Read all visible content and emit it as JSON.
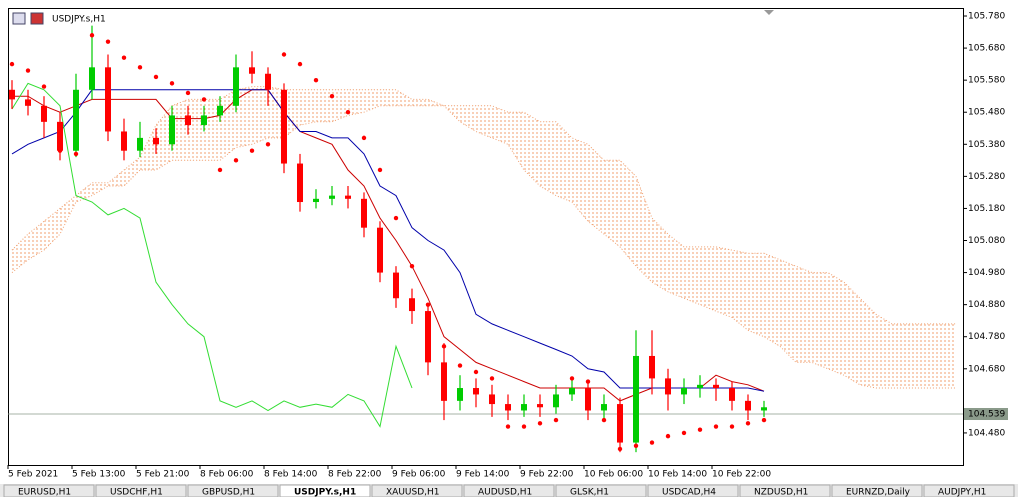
{
  "chart_data": {
    "type": "candlestick",
    "title": "USDJPY.s,H1",
    "categories": [
      "5 Feb 2021",
      null,
      null,
      null,
      "5 Feb 13:00",
      null,
      null,
      null,
      "5 Feb 21:00",
      null,
      null,
      null,
      "8 Feb 06:00",
      null,
      null,
      null,
      "8 Feb 14:00",
      null,
      null,
      null,
      "8 Feb 22:00",
      null,
      null,
      null,
      "9 Feb 06:00",
      null,
      null,
      null,
      "9 Feb 14:00",
      null,
      null,
      null,
      "9 Feb 22:00",
      null,
      null,
      null,
      "10 Feb 06:00",
      null,
      null,
      null,
      "10 Feb 14:00",
      null,
      null,
      null,
      "10 Feb 22:00",
      null,
      null,
      null,
      null,
      null,
      null,
      null,
      null,
      null,
      null,
      null,
      null,
      null,
      null,
      null
    ],
    "open": [
      105.55,
      105.52,
      105.5,
      105.45,
      105.36,
      105.55,
      105.62,
      105.42,
      105.36,
      105.4,
      105.38,
      105.47,
      105.44,
      105.47,
      105.5,
      105.62,
      105.6,
      105.55,
      105.32,
      105.2,
      105.21,
      105.22,
      105.21,
      105.12,
      104.98,
      104.9,
      104.86,
      104.7,
      104.58,
      104.62,
      104.6,
      104.57,
      104.55,
      104.57,
      104.56,
      104.6,
      104.62,
      104.55,
      104.57,
      104.45,
      104.72,
      104.65,
      104.6,
      104.62,
      104.63,
      104.62,
      104.58,
      104.55,
      null,
      null,
      null,
      null,
      null,
      null,
      null,
      null,
      null,
      null,
      null,
      null
    ],
    "high": [
      105.58,
      105.55,
      105.53,
      105.48,
      105.6,
      105.75,
      105.66,
      105.46,
      105.45,
      105.43,
      105.5,
      105.5,
      105.5,
      105.53,
      105.66,
      105.67,
      105.62,
      105.57,
      105.35,
      105.24,
      105.25,
      105.25,
      105.23,
      105.14,
      105.0,
      104.93,
      104.88,
      104.76,
      104.66,
      104.65,
      104.63,
      104.6,
      104.6,
      104.6,
      104.63,
      104.65,
      104.64,
      104.6,
      104.59,
      104.8,
      104.8,
      104.68,
      104.65,
      104.66,
      104.65,
      104.64,
      104.6,
      104.58,
      null,
      null,
      null,
      null,
      null,
      null,
      null,
      null,
      null,
      null,
      null,
      null
    ],
    "low": [
      105.49,
      105.47,
      105.4,
      105.33,
      105.34,
      105.52,
      105.39,
      105.33,
      105.34,
      105.35,
      105.36,
      105.41,
      105.42,
      105.45,
      105.48,
      105.57,
      105.5,
      105.29,
      105.17,
      105.18,
      105.19,
      105.18,
      105.09,
      104.95,
      104.87,
      104.82,
      104.66,
      104.52,
      104.55,
      104.56,
      104.53,
      104.52,
      104.53,
      104.53,
      104.54,
      104.58,
      104.52,
      104.52,
      104.42,
      104.42,
      104.6,
      104.55,
      104.57,
      104.59,
      104.58,
      104.55,
      104.52,
      104.53,
      null,
      null,
      null,
      null,
      null,
      null,
      null,
      null,
      null,
      null,
      null,
      null
    ],
    "close": [
      105.52,
      105.5,
      105.45,
      105.36,
      105.55,
      105.62,
      105.42,
      105.36,
      105.4,
      105.38,
      105.47,
      105.44,
      105.47,
      105.5,
      105.62,
      105.6,
      105.55,
      105.32,
      105.2,
      105.21,
      105.22,
      105.21,
      105.12,
      104.98,
      104.9,
      104.86,
      104.7,
      104.58,
      104.62,
      104.6,
      104.57,
      104.55,
      104.57,
      104.56,
      104.6,
      104.62,
      104.55,
      104.57,
      104.45,
      104.72,
      104.65,
      104.6,
      104.62,
      104.63,
      104.62,
      104.58,
      104.55,
      104.56,
      null,
      null,
      null,
      null,
      null,
      null,
      null,
      null,
      null,
      null,
      null,
      null
    ],
    "up_color": "#00cc00",
    "down_color": "#ff0000",
    "lines": [
      {
        "color": "#cc0000",
        "values": [
          105.53,
          105.53,
          105.5,
          105.48,
          105.5,
          105.52,
          105.52,
          105.52,
          105.52,
          105.52,
          105.46,
          105.46,
          105.46,
          105.47,
          105.52,
          105.55,
          105.55,
          105.48,
          105.42,
          105.4,
          105.38,
          105.3,
          105.25,
          105.15,
          105.08,
          105.0,
          104.9,
          104.78,
          104.74,
          104.7,
          104.68,
          104.66,
          104.64,
          104.62,
          104.62,
          104.62,
          104.62,
          104.62,
          104.58,
          104.6,
          104.62,
          104.62,
          104.62,
          104.62,
          104.66,
          104.64,
          104.63,
          104.61,
          null,
          null,
          null,
          null,
          null,
          null,
          null,
          null,
          null,
          null,
          null,
          null
        ]
      },
      {
        "color": "#0000aa",
        "values": [
          105.35,
          105.38,
          105.4,
          105.42,
          105.48,
          105.55,
          105.55,
          105.55,
          105.55,
          105.55,
          105.55,
          105.55,
          105.55,
          105.55,
          105.55,
          105.55,
          105.55,
          105.48,
          105.42,
          105.42,
          105.4,
          105.4,
          105.35,
          105.25,
          105.22,
          105.12,
          105.08,
          105.05,
          104.98,
          104.85,
          104.82,
          104.8,
          104.78,
          104.76,
          104.74,
          104.72,
          104.68,
          104.67,
          104.62,
          104.62,
          104.62,
          104.62,
          104.62,
          104.62,
          104.62,
          104.62,
          104.62,
          104.61,
          null,
          null,
          null,
          null,
          null,
          null,
          null,
          null,
          null,
          null,
          null,
          null
        ]
      },
      {
        "color": "#33dd33",
        "values": [
          105.49,
          105.57,
          105.55,
          105.5,
          105.22,
          105.2,
          105.16,
          105.18,
          105.15,
          104.95,
          104.88,
          104.82,
          104.78,
          104.58,
          104.56,
          104.58,
          104.55,
          104.58,
          104.56,
          104.57,
          104.56,
          104.6,
          104.58,
          104.5,
          104.75,
          104.62,
          null,
          null,
          null,
          null,
          null,
          null,
          null,
          null,
          null,
          null,
          null,
          null,
          null,
          null,
          null,
          null,
          null,
          null,
          null,
          null,
          null,
          null,
          null,
          null,
          null,
          null,
          null,
          null,
          null,
          null,
          null,
          null,
          null,
          null
        ]
      }
    ],
    "cloud": {
      "color": "#f0a070",
      "upper": [
        105.05,
        105.1,
        105.14,
        105.18,
        105.22,
        105.26,
        105.26,
        105.3,
        105.34,
        105.44,
        105.5,
        105.52,
        105.52,
        105.52,
        105.55,
        105.56,
        105.56,
        105.55,
        105.55,
        105.55,
        105.55,
        105.55,
        105.55,
        105.55,
        105.55,
        105.52,
        105.52,
        105.5,
        105.5,
        105.5,
        105.5,
        105.48,
        105.48,
        105.45,
        105.45,
        105.4,
        105.38,
        105.33,
        105.33,
        105.28,
        105.15,
        105.1,
        105.06,
        105.06,
        105.06,
        105.05,
        105.04,
        105.04,
        105.02,
        105.0,
        104.98,
        104.98,
        104.95,
        104.9,
        104.85,
        104.82,
        104.82,
        104.82,
        104.82,
        104.82
      ],
      "lower": [
        104.98,
        105.02,
        105.05,
        105.1,
        105.2,
        105.22,
        105.25,
        105.25,
        105.3,
        105.3,
        105.33,
        105.33,
        105.33,
        105.33,
        105.37,
        105.38,
        105.4,
        105.4,
        105.44,
        105.45,
        105.45,
        105.47,
        105.48,
        105.5,
        105.5,
        105.5,
        105.5,
        105.5,
        105.45,
        105.42,
        105.4,
        105.38,
        105.3,
        105.25,
        105.22,
        105.2,
        105.14,
        105.1,
        105.06,
        105.0,
        104.95,
        104.92,
        104.9,
        104.88,
        104.86,
        104.84,
        104.8,
        104.78,
        104.75,
        104.7,
        104.7,
        104.68,
        104.66,
        104.63,
        104.62,
        104.62,
        104.62,
        104.62,
        104.62,
        104.62
      ]
    },
    "sar": {
      "color": "#ff0000",
      "values": [
        105.63,
        105.61,
        105.56,
        105.36,
        105.35,
        105.72,
        105.7,
        105.65,
        105.62,
        105.59,
        105.57,
        105.54,
        105.52,
        105.3,
        105.33,
        105.36,
        105.38,
        105.66,
        105.63,
        105.58,
        105.53,
        105.48,
        105.4,
        105.3,
        105.15,
        105.0,
        104.88,
        104.75,
        104.69,
        104.67,
        104.65,
        104.5,
        104.5,
        104.51,
        104.52,
        104.65,
        104.64,
        104.52,
        104.43,
        104.44,
        104.45,
        104.47,
        104.48,
        104.49,
        104.5,
        104.5,
        104.51,
        104.52,
        null,
        null,
        null,
        null,
        null,
        null,
        null,
        null,
        null,
        null,
        null,
        null
      ]
    },
    "current_price": 104.539,
    "ylim": [
      104.38,
      105.805
    ],
    "yticks": [
      {
        "value": 105.78,
        "label": "105.780"
      },
      {
        "value": 105.68,
        "label": "105.680"
      },
      {
        "value": 105.58,
        "label": "105.580"
      },
      {
        "value": 105.48,
        "label": "105.480"
      },
      {
        "value": 105.38,
        "label": "105.380"
      },
      {
        "value": 105.28,
        "label": "105.280"
      },
      {
        "value": 105.18,
        "label": "105.180"
      },
      {
        "value": 105.08,
        "label": "105.080"
      },
      {
        "value": 104.98,
        "label": "104.980"
      },
      {
        "value": 104.88,
        "label": "104.880"
      },
      {
        "value": 104.78,
        "label": "104.780"
      },
      {
        "value": 104.68,
        "label": "104.680"
      },
      {
        "value": 104.48,
        "label": "104.480"
      }
    ]
  },
  "tabs": [
    "EURUSD,H1",
    "USDCHF,H1",
    "GBPUSD,H1",
    "USDJPY.s,H1",
    "XAUUSD,H1",
    "AUDUSD,H1",
    "GLSK,H1",
    "USDCAD,H4",
    "NZDUSD,H1",
    "EURNZD,Daily",
    "AUDJPY,H1"
  ],
  "active_tab": 3
}
